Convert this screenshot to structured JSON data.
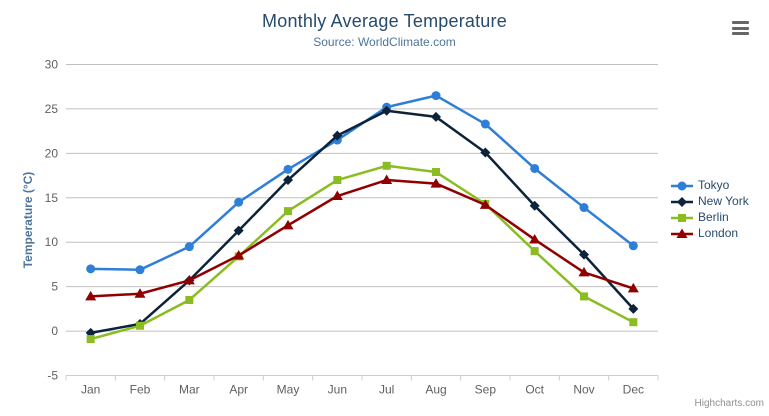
{
  "colors": {
    "title": "#274b6d",
    "subtitle": "#4d759e",
    "axis_title": "#4d759e",
    "axis_label": "#606060",
    "grid": "#c0c0c0",
    "axis_line": "#c0d0e0",
    "legend_text": "#274b6d",
    "credit": "#909090",
    "menu_icon": "#666666"
  },
  "export_menu": {
    "icon": "hamburger-menu-icon"
  },
  "credits": {
    "label": "Highcharts.com"
  },
  "chart_data": {
    "type": "line",
    "title": "Monthly Average Temperature",
    "subtitle": "Source: WorldClimate.com",
    "categories": [
      "Jan",
      "Feb",
      "Mar",
      "Apr",
      "May",
      "Jun",
      "Jul",
      "Aug",
      "Sep",
      "Oct",
      "Nov",
      "Dec"
    ],
    "xlabel": "",
    "ylabel": "Temperature (°C)",
    "ylim": [
      -5,
      30
    ],
    "yticks": [
      -5,
      0,
      5,
      10,
      15,
      20,
      25,
      30
    ],
    "grid": true,
    "legend_position": "right",
    "series": [
      {
        "name": "Tokyo",
        "color": "#2f7ed8",
        "marker": "circle",
        "values": [
          7.0,
          6.9,
          9.5,
          14.5,
          18.2,
          21.5,
          25.2,
          26.5,
          23.3,
          18.3,
          13.9,
          9.6
        ]
      },
      {
        "name": "New York",
        "color": "#0d233a",
        "marker": "diamond",
        "values": [
          -0.2,
          0.8,
          5.7,
          11.3,
          17.0,
          22.0,
          24.8,
          24.1,
          20.1,
          14.1,
          8.6,
          2.5
        ]
      },
      {
        "name": "Berlin",
        "color": "#8bbc21",
        "marker": "square",
        "values": [
          -0.9,
          0.6,
          3.5,
          8.4,
          13.5,
          17.0,
          18.6,
          17.9,
          14.3,
          9.0,
          3.9,
          1.0
        ]
      },
      {
        "name": "London",
        "color": "#910000",
        "marker": "triangle",
        "values": [
          3.9,
          4.2,
          5.7,
          8.5,
          11.9,
          15.2,
          17.0,
          16.6,
          14.2,
          10.3,
          6.6,
          4.8
        ]
      }
    ]
  }
}
